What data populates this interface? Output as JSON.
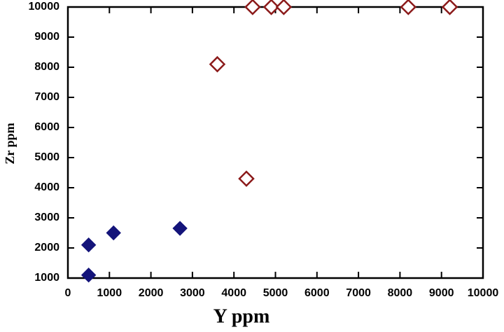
{
  "chart_data": {
    "type": "scatter",
    "xlabel": "Y ppm",
    "ylabel": "Zr ppm",
    "xlim": [
      0,
      10000
    ],
    "ylim": [
      1000,
      10000
    ],
    "xticks": [
      0,
      1000,
      2000,
      3000,
      4000,
      5000,
      6000,
      7000,
      8000,
      9000,
      10000
    ],
    "yticks": [
      1000,
      2000,
      3000,
      4000,
      5000,
      6000,
      7000,
      8000,
      9000,
      10000
    ],
    "grid": false,
    "series": [
      {
        "color": "#14147a",
        "marker": "filled-diamond",
        "x": [
          500,
          500,
          1100,
          2700
        ],
        "values": [
          1100,
          2100,
          2500,
          2650
        ]
      },
      {
        "color": "#8b1a1a",
        "marker": "open-diamond",
        "x": [
          3600,
          4300,
          4450,
          4900,
          5200,
          8200,
          9200
        ],
        "values": [
          8100,
          4300,
          10000,
          10000,
          10000,
          10000,
          10000
        ]
      }
    ]
  }
}
